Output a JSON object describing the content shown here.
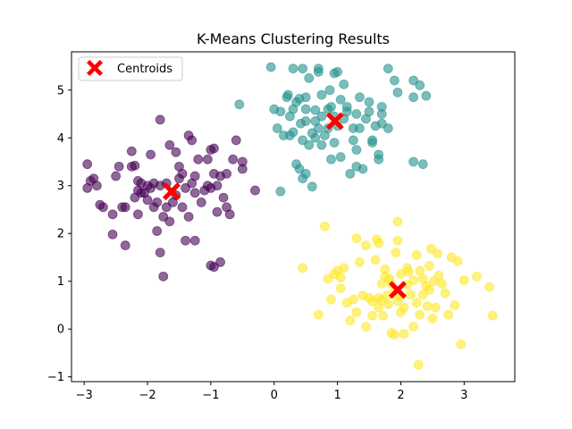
{
  "chart_data": {
    "type": "scatter",
    "title": "K-Means Clustering Results",
    "xlabel": "",
    "ylabel": "",
    "xlim": [
      -3.2,
      3.8
    ],
    "ylim": [
      -1.1,
      5.8
    ],
    "x_ticks": [
      -3,
      -2,
      -1,
      0,
      1,
      2,
      3
    ],
    "y_ticks": [
      -1,
      0,
      1,
      2,
      3,
      4,
      5
    ],
    "grid": false,
    "legend": {
      "position": "top-left",
      "entries": [
        "Centroids"
      ]
    },
    "colors": {
      "cluster_0": "#440154",
      "cluster_1": "#21918c",
      "cluster_2": "#fde725",
      "centroid": "#ff0000"
    },
    "series": [
      {
        "cluster": 0,
        "points": [
          [
            -2.95,
            3.45
          ],
          [
            -2.95,
            2.95
          ],
          [
            -2.9,
            3.1
          ],
          [
            -2.85,
            3.15
          ],
          [
            -2.8,
            3.0
          ],
          [
            -2.75,
            2.6
          ],
          [
            -2.7,
            2.55
          ],
          [
            -2.55,
            2.4
          ],
          [
            -2.5,
            3.2
          ],
          [
            -2.55,
            1.98
          ],
          [
            -2.45,
            3.4
          ],
          [
            -2.4,
            2.55
          ],
          [
            -2.35,
            1.75
          ],
          [
            -2.35,
            2.55
          ],
          [
            -2.25,
            3.72
          ],
          [
            -2.25,
            3.4
          ],
          [
            -2.2,
            3.42
          ],
          [
            -2.2,
            2.75
          ],
          [
            -2.15,
            2.9
          ],
          [
            -2.15,
            3.1
          ],
          [
            -2.1,
            2.85
          ],
          [
            -2.15,
            2.4
          ],
          [
            -2.1,
            3.05
          ],
          [
            -2.05,
            2.85
          ],
          [
            -2.0,
            3.0
          ],
          [
            -2.0,
            2.7
          ],
          [
            -1.95,
            3.65
          ],
          [
            -1.95,
            2.95
          ],
          [
            -1.9,
            2.55
          ],
          [
            -1.9,
            3.05
          ],
          [
            -1.85,
            2.65
          ],
          [
            -1.85,
            2.05
          ],
          [
            -1.8,
            4.38
          ],
          [
            -1.8,
            3.0
          ],
          [
            -1.75,
            2.35
          ],
          [
            -1.8,
            1.6
          ],
          [
            -1.75,
            1.1
          ],
          [
            -1.7,
            2.55
          ],
          [
            -1.7,
            3.05
          ],
          [
            -1.65,
            2.25
          ],
          [
            -1.65,
            3.85
          ],
          [
            -1.6,
            2.65
          ],
          [
            -1.55,
            2.8
          ],
          [
            -1.55,
            3.7
          ],
          [
            -1.5,
            3.15
          ],
          [
            -1.5,
            3.4
          ],
          [
            -1.45,
            3.25
          ],
          [
            -1.45,
            2.55
          ],
          [
            -1.4,
            2.95
          ],
          [
            -1.4,
            1.85
          ],
          [
            -1.35,
            2.35
          ],
          [
            -1.35,
            4.05
          ],
          [
            -1.3,
            3.95
          ],
          [
            -1.3,
            3.05
          ],
          [
            -1.25,
            3.2
          ],
          [
            -1.25,
            2.85
          ],
          [
            -1.25,
            1.85
          ],
          [
            -1.2,
            3.55
          ],
          [
            -1.15,
            2.65
          ],
          [
            -1.1,
            2.9
          ],
          [
            -1.05,
            3.0
          ],
          [
            -1.05,
            3.55
          ],
          [
            -1.0,
            3.75
          ],
          [
            -1.0,
            2.95
          ],
          [
            -1.0,
            1.33
          ],
          [
            -0.95,
            3.78
          ],
          [
            -0.95,
            3.25
          ],
          [
            -0.95,
            1.3
          ],
          [
            -0.9,
            2.45
          ],
          [
            -0.9,
            3.0
          ],
          [
            -0.85,
            3.2
          ],
          [
            -0.85,
            1.4
          ],
          [
            -0.8,
            2.75
          ],
          [
            -0.75,
            2.55
          ],
          [
            -0.75,
            3.25
          ],
          [
            -0.7,
            2.4
          ],
          [
            -0.65,
            3.55
          ],
          [
            -0.6,
            3.95
          ],
          [
            -0.5,
            3.35
          ],
          [
            -0.5,
            3.5
          ],
          [
            -0.3,
            2.9
          ]
        ]
      },
      {
        "cluster": 1,
        "points": [
          [
            -0.55,
            4.7
          ],
          [
            -0.05,
            5.48
          ],
          [
            0.0,
            4.6
          ],
          [
            0.05,
            4.2
          ],
          [
            0.1,
            4.55
          ],
          [
            0.1,
            2.88
          ],
          [
            0.15,
            4.05
          ],
          [
            0.2,
            4.85
          ],
          [
            0.22,
            4.9
          ],
          [
            0.25,
            4.45
          ],
          [
            0.25,
            4.05
          ],
          [
            0.3,
            5.45
          ],
          [
            0.3,
            4.6
          ],
          [
            0.3,
            4.12
          ],
          [
            0.35,
            4.75
          ],
          [
            0.35,
            3.45
          ],
          [
            0.4,
            3.35
          ],
          [
            0.4,
            4.82
          ],
          [
            0.42,
            4.3
          ],
          [
            0.45,
            5.45
          ],
          [
            0.45,
            3.95
          ],
          [
            0.45,
            3.15
          ],
          [
            0.5,
            4.6
          ],
          [
            0.5,
            4.35
          ],
          [
            0.5,
            4.85
          ],
          [
            0.5,
            3.25
          ],
          [
            0.55,
            3.85
          ],
          [
            0.55,
            5.25
          ],
          [
            0.6,
            4.1
          ],
          [
            0.6,
            2.98
          ],
          [
            0.65,
            4.35
          ],
          [
            0.65,
            4.58
          ],
          [
            0.65,
            4.0
          ],
          [
            0.7,
            5.45
          ],
          [
            0.7,
            5.38
          ],
          [
            0.7,
            4.2
          ],
          [
            0.75,
            4.9
          ],
          [
            0.75,
            4.45
          ],
          [
            0.75,
            3.85
          ],
          [
            0.8,
            4.05
          ],
          [
            0.85,
            4.2
          ],
          [
            0.85,
            4.6
          ],
          [
            0.88,
            5.0
          ],
          [
            0.9,
            4.65
          ],
          [
            0.9,
            3.55
          ],
          [
            0.95,
            5.35
          ],
          [
            0.95,
            4.45
          ],
          [
            0.95,
            3.9
          ],
          [
            1.0,
            5.38
          ],
          [
            1.0,
            4.25
          ],
          [
            1.05,
            4.8
          ],
          [
            1.05,
            3.6
          ],
          [
            1.1,
            5.12
          ],
          [
            1.1,
            4.4
          ],
          [
            1.15,
            4.65
          ],
          [
            1.15,
            4.55
          ],
          [
            1.2,
            3.25
          ],
          [
            1.25,
            3.95
          ],
          [
            1.25,
            4.2
          ],
          [
            1.3,
            4.5
          ],
          [
            1.3,
            3.75
          ],
          [
            1.3,
            3.4
          ],
          [
            1.35,
            4.85
          ],
          [
            1.35,
            4.2
          ],
          [
            1.4,
            3.35
          ],
          [
            1.45,
            4.4
          ],
          [
            1.5,
            4.75
          ],
          [
            1.5,
            4.55
          ],
          [
            1.55,
            3.95
          ],
          [
            1.55,
            3.9
          ],
          [
            1.6,
            4.25
          ],
          [
            1.65,
            3.65
          ],
          [
            1.65,
            3.55
          ],
          [
            1.7,
            4.3
          ],
          [
            1.7,
            4.5
          ],
          [
            1.8,
            5.45
          ],
          [
            1.8,
            4.2
          ],
          [
            1.9,
            5.2
          ],
          [
            1.95,
            4.95
          ],
          [
            2.2,
            5.2
          ],
          [
            2.2,
            4.85
          ],
          [
            2.3,
            5.1
          ],
          [
            2.4,
            4.88
          ],
          [
            2.2,
            3.5
          ],
          [
            2.35,
            3.45
          ],
          [
            1.7,
            4.65
          ]
        ]
      },
      {
        "cluster": 2,
        "points": [
          [
            0.45,
            1.28
          ],
          [
            0.7,
            0.3
          ],
          [
            0.8,
            2.15
          ],
          [
            0.85,
            1.05
          ],
          [
            0.9,
            0.62
          ],
          [
            0.95,
            1.15
          ],
          [
            1.0,
            1.22
          ],
          [
            1.05,
            0.85
          ],
          [
            1.05,
            1.08
          ],
          [
            1.1,
            1.28
          ],
          [
            1.15,
            0.55
          ],
          [
            1.2,
            0.18
          ],
          [
            1.25,
            0.62
          ],
          [
            1.3,
            1.9
          ],
          [
            1.3,
            0.35
          ],
          [
            1.35,
            1.4
          ],
          [
            1.4,
            0.7
          ],
          [
            1.45,
            0.05
          ],
          [
            1.45,
            1.75
          ],
          [
            1.5,
            0.65
          ],
          [
            1.55,
            0.58
          ],
          [
            1.55,
            0.28
          ],
          [
            1.6,
            1.45
          ],
          [
            1.62,
            1.88
          ],
          [
            1.65,
            1.8
          ],
          [
            1.65,
            0.65
          ],
          [
            1.65,
            0.45
          ],
          [
            1.7,
            0.95
          ],
          [
            1.72,
            0.28
          ],
          [
            1.75,
            1.25
          ],
          [
            1.75,
            1.1
          ],
          [
            1.78,
            0.7
          ],
          [
            1.8,
            0.52
          ],
          [
            1.82,
            1.05
          ],
          [
            1.85,
            -0.08
          ],
          [
            1.85,
            0.95
          ],
          [
            1.9,
            -0.12
          ],
          [
            1.9,
            0.78
          ],
          [
            1.92,
            1.6
          ],
          [
            1.95,
            2.25
          ],
          [
            1.95,
            1.85
          ],
          [
            1.95,
            0.58
          ],
          [
            2.0,
            1.15
          ],
          [
            2.0,
            0.68
          ],
          [
            2.05,
            0.45
          ],
          [
            2.05,
            -0.1
          ],
          [
            2.1,
            1.28
          ],
          [
            2.1,
            0.92
          ],
          [
            2.12,
            1.2
          ],
          [
            2.15,
            0.72
          ],
          [
            2.2,
            1.02
          ],
          [
            2.25,
            0.55
          ],
          [
            2.25,
            1.55
          ],
          [
            2.28,
            -0.75
          ],
          [
            2.3,
            1.22
          ],
          [
            2.3,
            0.3
          ],
          [
            2.35,
            1.05
          ],
          [
            2.35,
            0.72
          ],
          [
            2.4,
            0.9
          ],
          [
            2.42,
            0.48
          ],
          [
            2.45,
            1.32
          ],
          [
            2.45,
            0.82
          ],
          [
            2.48,
            1.68
          ],
          [
            2.5,
            0.22
          ],
          [
            2.52,
            1.0
          ],
          [
            2.55,
            0.45
          ],
          [
            2.58,
            1.58
          ],
          [
            2.6,
            1.12
          ],
          [
            2.65,
            0.95
          ],
          [
            2.7,
            0.75
          ],
          [
            2.75,
            0.3
          ],
          [
            2.8,
            1.5
          ],
          [
            2.85,
            0.5
          ],
          [
            2.9,
            1.42
          ],
          [
            2.95,
            -0.32
          ],
          [
            3.0,
            1.02
          ],
          [
            3.2,
            1.1
          ],
          [
            3.4,
            0.88
          ],
          [
            3.45,
            0.28
          ],
          [
            2.0,
            0.35
          ],
          [
            1.7,
            0.6
          ],
          [
            2.2,
            0.05
          ]
        ]
      }
    ],
    "centroids": [
      {
        "cluster": 0,
        "x": -1.62,
        "y": 2.88
      },
      {
        "cluster": 1,
        "x": 0.96,
        "y": 4.35
      },
      {
        "cluster": 2,
        "x": 1.95,
        "y": 0.82
      }
    ]
  }
}
